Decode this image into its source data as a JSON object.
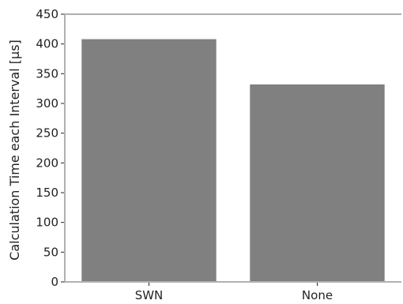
{
  "chart_data": {
    "type": "bar",
    "categories": [
      "SWN",
      "None"
    ],
    "values": [
      408,
      332
    ],
    "title": "",
    "xlabel": "",
    "ylabel": "Calculation Time each Interval [µs]",
    "ylim": [
      0,
      450
    ],
    "yticks": [
      0,
      50,
      100,
      150,
      200,
      250,
      300,
      350,
      400,
      450
    ],
    "grid": false,
    "bar_color": "#808080",
    "axis_color": "#b0b0b0",
    "tick_color": "#222222"
  }
}
